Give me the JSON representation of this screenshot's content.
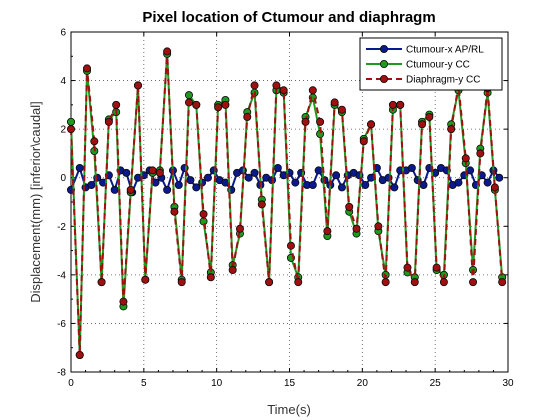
{
  "chart_data": {
    "type": "line",
    "title": "Pixel location of Ctumour and diaphragm",
    "xlabel": "Time(s)",
    "ylabel": "Displacement(mm) [inferior\\caudal]",
    "xlim": [
      0,
      30
    ],
    "ylim": [
      -8,
      6
    ],
    "xticks": [
      0,
      5,
      10,
      15,
      20,
      25,
      30
    ],
    "yticks": [
      -8,
      -6,
      -4,
      -2,
      0,
      2,
      4,
      6
    ],
    "grid": true,
    "legend_position": "top-right",
    "series": [
      {
        "name": "Ctumour-x AP/RL",
        "color": "#0a1a8c",
        "dash": "solid",
        "x": [
          0.0,
          0.6,
          1.0,
          1.4,
          1.8,
          2.2,
          2.6,
          3.0,
          3.4,
          3.8,
          4.2,
          4.6,
          5.0,
          5.4,
          5.8,
          6.2,
          6.6,
          7.0,
          7.4,
          7.8,
          8.2,
          8.6,
          9.0,
          9.4,
          9.8,
          10.2,
          10.6,
          11.0,
          11.4,
          11.8,
          12.2,
          12.6,
          13.0,
          13.4,
          13.8,
          14.2,
          14.6,
          15.0,
          15.4,
          15.8,
          16.2,
          16.6,
          17.0,
          17.4,
          17.8,
          18.2,
          18.6,
          19.0,
          19.4,
          19.8,
          20.2,
          20.6,
          21.0,
          21.4,
          21.8,
          22.2,
          22.6,
          23.0,
          23.4,
          23.8,
          24.2,
          24.6,
          25.0,
          25.4,
          25.8,
          26.2,
          26.6,
          27.0,
          27.4,
          27.8,
          28.2,
          28.6,
          29.0,
          29.4
        ],
        "y": [
          -0.5,
          0.4,
          -0.4,
          -0.3,
          0.0,
          -0.2,
          0.1,
          -0.5,
          0.3,
          0.2,
          -0.6,
          0.0,
          0.1,
          0.3,
          -0.2,
          0.0,
          -0.5,
          0.3,
          -0.3,
          0.4,
          -0.1,
          -0.4,
          -0.2,
          0.0,
          0.3,
          -0.1,
          -0.2,
          -0.5,
          0.2,
          0.3,
          0.0,
          0.2,
          -0.3,
          0.0,
          -0.1,
          0.4,
          0.1,
          0.2,
          -0.2,
          0.2,
          -0.3,
          -0.3,
          0.3,
          -0.1,
          -0.3,
          0.1,
          -0.4,
          0.1,
          0.2,
          0.1,
          -0.3,
          0.0,
          0.4,
          -0.1,
          0.0,
          -0.4,
          0.3,
          0.3,
          0.4,
          -0.1,
          -0.3,
          0.4,
          0.2,
          0.4,
          0.3,
          -0.3,
          -0.2,
          0.1,
          0.3,
          -0.3,
          0.1,
          -0.2,
          0.3,
          0.0
        ]
      },
      {
        "name": "Ctumour-y CC",
        "color": "#1e9a1e",
        "dash": "solid",
        "x": [
          0.0,
          0.6,
          1.1,
          1.6,
          2.1,
          2.6,
          3.1,
          3.6,
          4.1,
          4.6,
          5.1,
          5.6,
          6.1,
          6.6,
          7.1,
          7.6,
          8.1,
          8.6,
          9.1,
          9.6,
          10.1,
          10.6,
          11.1,
          11.6,
          12.1,
          12.6,
          13.1,
          13.6,
          14.1,
          14.6,
          15.1,
          15.6,
          16.1,
          16.6,
          17.1,
          17.6,
          18.1,
          18.6,
          19.1,
          19.6,
          20.1,
          20.6,
          21.1,
          21.6,
          22.1,
          22.6,
          23.1,
          23.6,
          24.1,
          24.6,
          25.1,
          25.6,
          26.1,
          26.6,
          27.1,
          27.6,
          28.1,
          28.6,
          29.1,
          29.6
        ],
        "y": [
          2.3,
          -7.3,
          4.4,
          1.1,
          -4.3,
          2.4,
          2.7,
          -5.3,
          -0.6,
          3.8,
          -4.2,
          0.2,
          0.3,
          5.1,
          -1.2,
          -4.2,
          3.4,
          3.0,
          -1.8,
          -3.9,
          3.0,
          3.2,
          -3.6,
          -2.3,
          2.7,
          3.5,
          -0.9,
          -4.3,
          3.6,
          3.5,
          -3.3,
          -4.1,
          2.5,
          3.3,
          1.8,
          -2.4,
          3.0,
          2.7,
          -1.4,
          -2.3,
          1.6,
          2.2,
          -2.2,
          -4.0,
          2.8,
          3.0,
          -3.9,
          -4.1,
          2.3,
          2.6,
          -3.8,
          -4.0,
          2.2,
          3.6,
          0.6,
          -3.8,
          1.2,
          3.5,
          -0.5,
          -4.1
        ]
      },
      {
        "name": "Diaphragm-y CC",
        "color": "#a01010",
        "dash": "dashed",
        "x": [
          0.0,
          0.6,
          1.1,
          1.6,
          2.1,
          2.6,
          3.1,
          3.6,
          4.1,
          4.6,
          5.1,
          5.6,
          6.1,
          6.6,
          7.1,
          7.6,
          8.1,
          8.6,
          9.1,
          9.6,
          10.1,
          10.6,
          11.1,
          11.6,
          12.1,
          12.6,
          13.1,
          13.6,
          14.1,
          14.6,
          15.1,
          15.6,
          16.1,
          16.6,
          17.1,
          17.6,
          18.1,
          18.6,
          19.1,
          19.6,
          20.1,
          20.6,
          21.1,
          21.6,
          22.1,
          22.6,
          23.1,
          23.6,
          24.1,
          24.6,
          25.1,
          25.6,
          26.1,
          26.6,
          27.1,
          27.6,
          28.1,
          28.6,
          29.1,
          29.6
        ],
        "y": [
          2.0,
          -7.3,
          4.5,
          1.5,
          -4.3,
          2.3,
          3.0,
          -5.1,
          -0.5,
          3.8,
          -4.2,
          0.3,
          0.2,
          5.2,
          -1.4,
          -4.3,
          3.1,
          3.0,
          -1.5,
          -4.1,
          2.9,
          3.0,
          -3.8,
          -2.1,
          2.5,
          3.8,
          -1.1,
          -4.3,
          3.8,
          3.6,
          -2.8,
          -4.3,
          2.3,
          3.6,
          2.3,
          -2.2,
          3.1,
          2.8,
          -1.2,
          -2.1,
          1.5,
          2.2,
          -2.0,
          -4.3,
          3.0,
          3.0,
          -3.7,
          -4.3,
          2.2,
          2.5,
          -3.7,
          -4.3,
          2.0,
          3.8,
          0.8,
          -4.3,
          1.0,
          3.7,
          -0.4,
          -4.3
        ]
      }
    ]
  }
}
